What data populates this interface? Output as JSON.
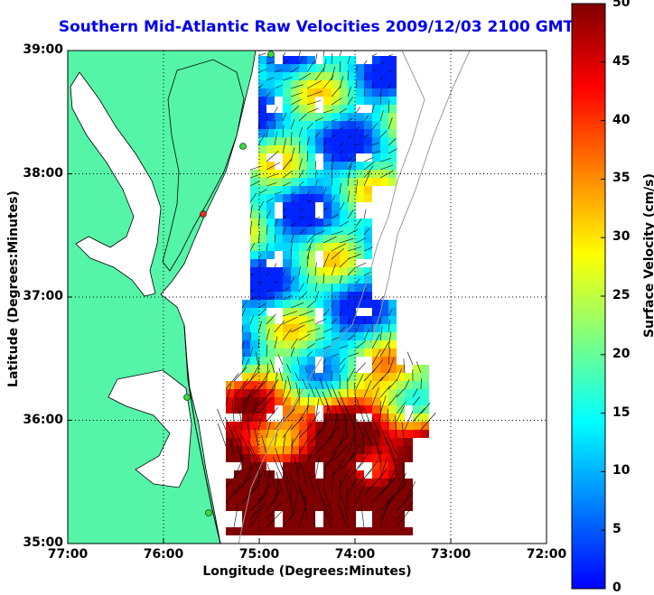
{
  "title": "Southern Mid-Atlantic Raw Velocities 2009/12/03 2100 GMT",
  "map": {
    "xlabel": "Longitude (Degrees:Minutes)",
    "ylabel": "Latitude (Degrees:Minutes)",
    "lon_range": [
      -77,
      -72
    ],
    "lat_range": [
      35,
      39
    ],
    "x_ticks": [
      {
        "value": -77,
        "label": "77:00"
      },
      {
        "value": -76,
        "label": "76:00"
      },
      {
        "value": -75,
        "label": "75:00"
      },
      {
        "value": -74,
        "label": "74:00"
      },
      {
        "value": -73,
        "label": "73:00"
      },
      {
        "value": -72,
        "label": "72:00"
      }
    ],
    "y_ticks": [
      {
        "value": 35,
        "label": "35:00"
      },
      {
        "value": 36,
        "label": "36:00"
      },
      {
        "value": 37,
        "label": "37:00"
      },
      {
        "value": 38,
        "label": "38:00"
      },
      {
        "value": 39,
        "label": "39:00"
      }
    ],
    "grid": "dotted",
    "land_color": "#55f5a8",
    "station_color": "#33dd33"
  },
  "colorbar": {
    "label": "Surface Velocity (cm/s)",
    "range": [
      0,
      50
    ],
    "ticks": [
      {
        "value": 0,
        "label": "0"
      },
      {
        "value": 5,
        "label": "5"
      },
      {
        "value": 10,
        "label": "10"
      },
      {
        "value": 15,
        "label": "15"
      },
      {
        "value": 20,
        "label": "20"
      },
      {
        "value": 25,
        "label": "25"
      },
      {
        "value": 30,
        "label": "30"
      },
      {
        "value": 35,
        "label": "35"
      },
      {
        "value": 40,
        "label": "40"
      },
      {
        "value": 45,
        "label": "45"
      },
      {
        "value": 50,
        "label": "50"
      }
    ],
    "colormap": [
      "#0000ff",
      "#0080ff",
      "#00ffff",
      "#80ff80",
      "#ffff00",
      "#ff8000",
      "#ff0000",
      "#800000"
    ]
  }
}
